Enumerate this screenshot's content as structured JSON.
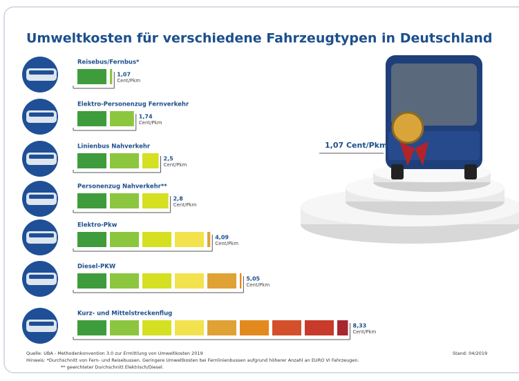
{
  "chart_data": {
    "type": "bar",
    "title": "Umweltkosten für verschiedene Fahrzeugtypen in Deutschland",
    "categories": [
      "Reisebus/Fernbus*",
      "Elektro-Personenzug Fernverkehr",
      "Linienbus Nahverkehr",
      "Personenzug Nahverkehr**",
      "Elektro-Pkw",
      "Diesel-PKW",
      "Kurz- und Mittelstreckenflug"
    ],
    "values": [
      1.07,
      1.74,
      2.5,
      2.8,
      4.09,
      5.05,
      8.33
    ],
    "value_labels": [
      "1,07",
      "1,74",
      "2,5",
      "2,8",
      "4,09",
      "5,05",
      "8,33"
    ],
    "unit": "Cent/Pkm",
    "colors": [
      "#3f9c3c",
      "#8cc63f",
      "#d4e021",
      "#f2e24d",
      "#e0a234",
      "#e38a1e",
      "#d4502a",
      "#c83a2a",
      "#a8262e"
    ],
    "source": "Quelle: UBA - Methodenkonvention 3.0 zur Ermittlung von Umweltkosten 2019",
    "notes": [
      "Hinweis: *Durchschnitt von Fern- und Reisebussen. Geringere Umweltkosten bei Fernlinienbussen aufgrund höherer Anzahl an EURO VI Fahrzeugen.",
      "** gewichteter Durchschnitt Elektrisch/Diesel."
    ],
    "date": "Stand: 04/2019"
  }
}
